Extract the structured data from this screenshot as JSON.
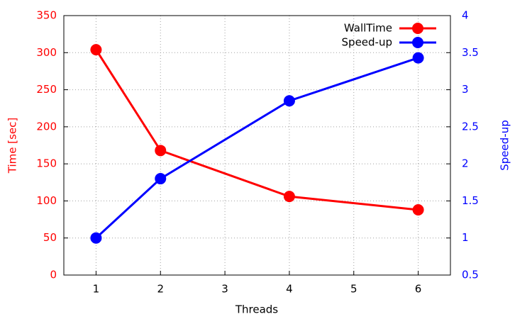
{
  "chart_data": {
    "type": "line",
    "x_label": "Threads",
    "y_label": "Time [sec]",
    "y2_label": "Speed-up",
    "x": [
      1,
      2,
      4,
      6
    ],
    "series": [
      {
        "name": "WallTime",
        "color": "#ff0000",
        "values": [
          304,
          168,
          106,
          88
        ]
      },
      {
        "name": "Speed-up",
        "color": "#0000ff",
        "axis": "y2",
        "values": [
          1.0,
          1.8,
          2.85,
          3.43
        ]
      }
    ],
    "xlim": [
      0.5,
      6.5
    ],
    "xticks": [
      1,
      2,
      3,
      4,
      5,
      6
    ],
    "ylim": [
      0,
      350
    ],
    "yticks": [
      0,
      50,
      100,
      150,
      200,
      250,
      300,
      350
    ],
    "y2lim": [
      0.5,
      4
    ],
    "y2ticks": [
      0.5,
      1,
      1.5,
      2,
      2.5,
      3,
      3.5,
      4
    ],
    "grid": true,
    "legend": "top-right"
  }
}
